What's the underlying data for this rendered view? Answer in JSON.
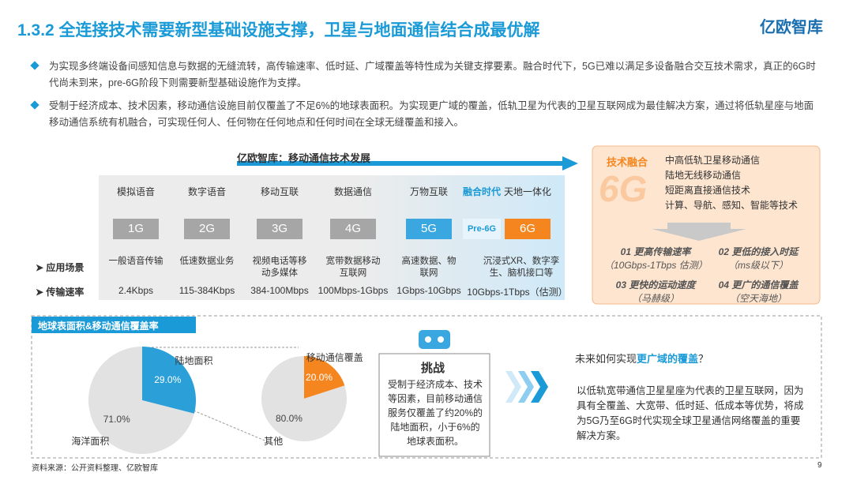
{
  "header": {
    "title": "1.3.2 全连接技术需要新型基础设施支撑，卫星与地面通信结合成最优解",
    "logo": "亿欧智库"
  },
  "bullets": [
    "为实现多终端设备间感知信息与数据的无缝流转，高传输速率、低时延、广域覆盖等特性成为关键支撑要素。融合时代下，5G已难以满足多设备融合交互技术需求，真正的6G时代尚未到来，pre-6G阶段下则需要新型基础设施作为支撑。",
    "受制于经济成本、技术因素，移动通信设施目前仅覆盖了不足6%的地球表面积。为实现更广域的覆盖，低轨卫星为代表的卫星互联网成为最佳解决方案，通过将低轨星座与地面移动通信系统有机融合，可实现任何人、任何物在任何地点和任何时间在全球无缝覆盖和接入。"
  ],
  "evolution": {
    "title": "亿欧智库：移动通信技术发展",
    "row_labels": [
      "应用场景",
      "传输速率"
    ],
    "stages": [
      {
        "era": "模拟语音",
        "gen": "1G",
        "scenario": "一般语音传输",
        "rate": "2.4Kbps"
      },
      {
        "era": "数字语音",
        "gen": "2G",
        "scenario": "低速数据业务",
        "rate": "115-384Kbps"
      },
      {
        "era": "移动互联",
        "gen": "3G",
        "scenario": "视频电话等移动多媒体",
        "rate": "384-100Mbps"
      },
      {
        "era": "数据通信",
        "gen": "4G",
        "scenario": "宽带数据移动互联网",
        "rate": "100Mbps-1Gbps"
      },
      {
        "era": "万物互联",
        "gen": "5G",
        "scenario": "高速数据、物联网",
        "rate": "1Gbps-10Gbps"
      },
      {
        "era": "融合时代",
        "gen": "Pre-6G"
      },
      {
        "era": "天地一体化",
        "gen": "6G",
        "scenario": "沉浸式XR、数字孪生、脑机接口等",
        "rate": "10Gbps-1Tbps（估测）"
      }
    ]
  },
  "fusion": {
    "title": "技术融合",
    "badge": "6G",
    "items": [
      "中高低轨卫星移动通信",
      "陆地无线移动通信",
      "短距离直接通信技术",
      "计算、导航、感知、智能等技术"
    ],
    "goals": [
      {
        "title": "01 更高传输速率",
        "note": "（10Gbps-1Tbps 估测）"
      },
      {
        "title": "02 更低的接入时延",
        "note": "（ms级以下）"
      },
      {
        "title": "03 更快的运动速度",
        "note": "（马赫级）"
      },
      {
        "title": "04 更广的通信覆盖",
        "note": "（空天海地）"
      }
    ]
  },
  "coverage": {
    "title": "地球表面积&移动通信覆盖率"
  },
  "chart_data": [
    {
      "type": "pie",
      "categories": [
        "陆地面积",
        "海洋面积"
      ],
      "values": [
        29.0,
        71.0
      ],
      "value_labels": [
        "29.0%",
        "71.0%"
      ],
      "colors": [
        "#2a9fd8",
        "#e2e2e2"
      ]
    },
    {
      "type": "pie",
      "categories": [
        "移动通信覆盖",
        "其他"
      ],
      "values": [
        20.0,
        80.0
      ],
      "value_labels": [
        "20.0%",
        "80.0%"
      ],
      "colors": [
        "#f5861f",
        "#e2e2e2"
      ]
    }
  ],
  "challenge": {
    "title": "挑战",
    "text": "受制于经济成本、技术等因素，目前移动通信服务仅覆盖了约20%的陆地面积，小于6%的地球表面积。"
  },
  "future": {
    "question": [
      "未来如何实现",
      "更广域的覆盖",
      "？"
    ],
    "answer": "以低轨宽带通信卫星星座为代表的卫星互联网，因为具有全覆盖、大宽带、低时延、低成本等优势，将成为5G乃至6G时代实现全球卫星通信网络覆盖的重要解决方案。"
  },
  "footer": {
    "source": "资料来源：公开资料整理、亿欧智库",
    "page": "9"
  }
}
